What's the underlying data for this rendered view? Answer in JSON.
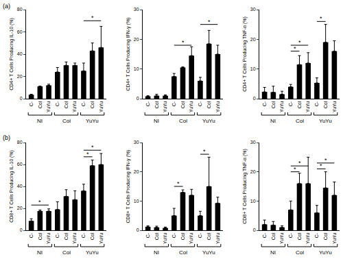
{
  "chart_data": [
    {
      "type": "bar",
      "panel": "(a)",
      "y_label": "CD4+ T Cells Producing IL-10 (%)",
      "categories": [
        "C-",
        "Col",
        "YuYu",
        "C-",
        "Col",
        "YuYu",
        "C-",
        "Col",
        "YuYu"
      ],
      "groups": [
        "NI",
        "Col",
        "YuYu"
      ],
      "values": [
        3.5,
        11,
        12,
        24,
        30,
        30,
        25,
        43,
        46
      ],
      "errors": [
        0.5,
        0.3,
        1,
        4,
        3,
        2,
        7,
        7,
        19
      ],
      "color": "#000000",
      "ylim": [
        0,
        80
      ],
      "yticks": [
        0,
        20,
        40,
        60,
        80
      ],
      "significance": [
        {
          "from": 6,
          "to": 8,
          "y": 70,
          "text": "*"
        }
      ]
    },
    {
      "type": "bar",
      "y_label": "CD4+ T Cells Producing IFN-γ (%)",
      "categories": [
        "C-",
        "Col",
        "YuYu",
        "C-",
        "Col",
        "YuYu",
        "C-",
        "Col",
        "YuYu"
      ],
      "groups": [
        "NI",
        "Col",
        "YuYu"
      ],
      "values": [
        0.8,
        1.0,
        1.0,
        7.5,
        10.5,
        14.5,
        6,
        18.5,
        15
      ],
      "errors": [
        0.2,
        0.5,
        0.3,
        1,
        0.2,
        3,
        1.2,
        4.5,
        3
      ],
      "color": "#000000",
      "ylim": [
        0,
        30
      ],
      "yticks": [
        0,
        10,
        20,
        30
      ],
      "significance": [
        {
          "from": 3,
          "to": 5,
          "y": 18,
          "text": "*"
        },
        {
          "from": 6,
          "to": 8,
          "y": 25,
          "text": "*"
        }
      ]
    },
    {
      "type": "bar",
      "y_label": "CD4+ T Cells Producing TNF-α (%)",
      "categories": [
        "C-",
        "Col",
        "YuYu",
        "C-",
        "Col",
        "YuYu",
        "C-",
        "Col",
        "YuYu"
      ],
      "groups": [
        "NI",
        "Col",
        "YuYu"
      ],
      "values": [
        2.3,
        2.2,
        1.5,
        4,
        11.5,
        12,
        5.3,
        19,
        16
      ],
      "errors": [
        1.5,
        2,
        1,
        0.8,
        3,
        3.5,
        1.7,
        6,
        3.5
      ],
      "color": "#000000",
      "ylim": [
        0,
        30
      ],
      "yticks": [
        0,
        10,
        20,
        30
      ],
      "significance": [
        {
          "from": 3,
          "to": 4,
          "y": 16,
          "text": "*"
        },
        {
          "from": 3,
          "to": 5,
          "y": 18,
          "text": "*"
        },
        {
          "from": 6,
          "to": 7,
          "y": 26,
          "text": "*"
        }
      ]
    },
    {
      "type": "bar",
      "panel": "(b)",
      "y_label": "CD8+ T Cells Producing IL-10 (%)",
      "categories": [
        "C-",
        "Col",
        "YuYu",
        "C-",
        "Col",
        "YuYu",
        "C-",
        "Col",
        "YuYu"
      ],
      "groups": [
        "NI",
        "Col",
        "YuYu"
      ],
      "values": [
        8.5,
        17.5,
        17.5,
        19,
        31,
        28,
        36,
        59,
        60
      ],
      "errors": [
        2,
        1,
        2,
        7,
        6,
        8,
        6,
        5,
        10
      ],
      "color": "#000000",
      "ylim": [
        0,
        80
      ],
      "yticks": [
        0,
        20,
        40,
        60,
        80
      ],
      "significance": [
        {
          "from": 0,
          "to": 2,
          "y": 23,
          "text": "*"
        },
        {
          "from": 6,
          "to": 7,
          "y": 67,
          "text": "*"
        },
        {
          "from": 6,
          "to": 8,
          "y": 73,
          "text": "*"
        }
      ]
    },
    {
      "type": "bar",
      "y_label": "CD8+ T Cells Producing IFN-γ (%)",
      "categories": [
        "C-",
        "Col",
        "YuYu",
        "C-",
        "Col",
        "YuYu",
        "C-",
        "Col",
        "YuYu"
      ],
      "groups": [
        "NI",
        "Col",
        "YuYu"
      ],
      "values": [
        1.2,
        1.0,
        0.8,
        5,
        13,
        12,
        5,
        15,
        9.3
      ],
      "errors": [
        0.3,
        0.4,
        0.3,
        2.5,
        0.8,
        2,
        1.5,
        10,
        2
      ],
      "color": "#000000",
      "ylim": [
        0,
        30
      ],
      "yticks": [
        0,
        10,
        20,
        30
      ],
      "significance": [
        {
          "from": 3,
          "to": 4,
          "y": 15,
          "text": "*"
        },
        {
          "from": 6,
          "to": 7,
          "y": 26,
          "text": "*"
        }
      ]
    },
    {
      "type": "bar",
      "y_label": "CD8+ T Cells Producing TNF-α (%)",
      "categories": [
        "C-",
        "Col",
        "YuYu",
        "C-",
        "Col",
        "YuYu",
        "C-",
        "Col",
        "YuYu"
      ],
      "groups": [
        "NI",
        "Col",
        "YuYu"
      ],
      "values": [
        2,
        1.8,
        1,
        7,
        16,
        16,
        6,
        14.5,
        12
      ],
      "errors": [
        1.5,
        1.2,
        0.5,
        3,
        3.5,
        9,
        2.5,
        5.5,
        4.5
      ],
      "color": "#000000",
      "ylim": [
        0,
        30
      ],
      "yticks": [
        0,
        10,
        20,
        30
      ],
      "significance": [
        {
          "from": 3,
          "to": 4,
          "y": 20,
          "text": "*"
        },
        {
          "from": 3,
          "to": 5,
          "y": 22,
          "text": "*"
        },
        {
          "from": 6,
          "to": 7,
          "y": 21,
          "text": "*"
        },
        {
          "from": 6,
          "to": 8,
          "y": 23,
          "text": "*"
        }
      ]
    }
  ]
}
